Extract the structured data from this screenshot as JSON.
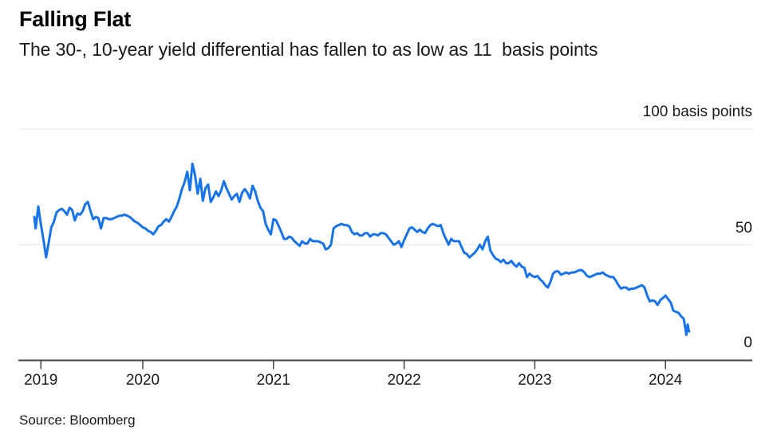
{
  "header": {
    "title": "Falling Flat",
    "subtitle": "The 30-, 10-year yield differential has fallen to as low as 11  basis points"
  },
  "footer": {
    "source": "Source: Bloomberg"
  },
  "colors": {
    "line": "#1673eb",
    "grid": "#e7e7e7",
    "axis": "#444444",
    "text": "#1a1a1a",
    "background": "#ffffff"
  },
  "chart_data": {
    "type": "line",
    "title": "Falling Flat",
    "subtitle": "The 30-, 10-year yield differential has fallen to as low as 11  basis points",
    "xlabel": "",
    "ylabel": "basis points",
    "ylim": [
      0,
      100
    ],
    "xlim_years": [
      2019.05,
      2024.66
    ],
    "grid": "horizontal-light",
    "legend": "none",
    "y_ticks": [
      {
        "value": 100,
        "label": "100 basis points"
      },
      {
        "value": 50,
        "label": "50"
      },
      {
        "value": 0,
        "label": "0"
      }
    ],
    "x_ticks": [
      {
        "label": "2019",
        "year": 2019.22
      },
      {
        "label": "2020",
        "year": 2020
      },
      {
        "label": "2021",
        "year": 2021
      },
      {
        "label": "2022",
        "year": 2022
      },
      {
        "label": "2023",
        "year": 2023
      },
      {
        "label": "2024",
        "year": 2024
      }
    ],
    "series": [
      {
        "name": "30-, 10-year yield differential",
        "unit": "basis points",
        "color": "#1673eb",
        "min_value": 11,
        "points": [
          [
            2019.17,
            62
          ],
          [
            2019.18,
            57
          ],
          [
            2019.2,
            66.5
          ],
          [
            2019.22,
            59
          ],
          [
            2019.24,
            52
          ],
          [
            2019.26,
            44.5
          ],
          [
            2019.28,
            51
          ],
          [
            2019.3,
            57.5
          ],
          [
            2019.32,
            60
          ],
          [
            2019.34,
            64
          ],
          [
            2019.36,
            65
          ],
          [
            2019.38,
            65.5
          ],
          [
            2019.4,
            64.5
          ],
          [
            2019.42,
            63
          ],
          [
            2019.44,
            66
          ],
          [
            2019.46,
            65
          ],
          [
            2019.48,
            60.5
          ],
          [
            2019.5,
            63.5
          ],
          [
            2019.52,
            63
          ],
          [
            2019.54,
            64.5
          ],
          [
            2019.56,
            67.5
          ],
          [
            2019.58,
            68.5
          ],
          [
            2019.6,
            64.5
          ],
          [
            2019.62,
            61
          ],
          [
            2019.64,
            62
          ],
          [
            2019.66,
            61.5
          ],
          [
            2019.68,
            57
          ],
          [
            2019.7,
            61.5
          ],
          [
            2019.72,
            61.5
          ],
          [
            2019.74,
            61
          ],
          [
            2019.76,
            61
          ],
          [
            2019.78,
            61.5
          ],
          [
            2019.8,
            62
          ],
          [
            2019.82,
            62.5
          ],
          [
            2019.84,
            62.5
          ],
          [
            2019.86,
            63
          ],
          [
            2019.88,
            62.5
          ],
          [
            2019.9,
            62
          ],
          [
            2019.92,
            61
          ],
          [
            2019.94,
            60
          ],
          [
            2019.96,
            59.5
          ],
          [
            2019.98,
            58.5
          ],
          [
            2020.0,
            57.5
          ],
          [
            2020.02,
            57
          ],
          [
            2020.04,
            56
          ],
          [
            2020.06,
            55.5
          ],
          [
            2020.08,
            54.5
          ],
          [
            2020.1,
            56
          ],
          [
            2020.12,
            58
          ],
          [
            2020.14,
            58.5
          ],
          [
            2020.16,
            60
          ],
          [
            2020.18,
            61
          ],
          [
            2020.2,
            60
          ],
          [
            2020.22,
            62
          ],
          [
            2020.24,
            64.5
          ],
          [
            2020.26,
            66.5
          ],
          [
            2020.28,
            70
          ],
          [
            2020.3,
            74
          ],
          [
            2020.32,
            77
          ],
          [
            2020.34,
            81.5
          ],
          [
            2020.35,
            78
          ],
          [
            2020.36,
            73.5
          ],
          [
            2020.38,
            85
          ],
          [
            2020.4,
            80
          ],
          [
            2020.42,
            72
          ],
          [
            2020.44,
            78.5
          ],
          [
            2020.46,
            69
          ],
          [
            2020.48,
            74.5
          ],
          [
            2020.5,
            76
          ],
          [
            2020.52,
            68.5
          ],
          [
            2020.54,
            70.5
          ],
          [
            2020.56,
            73
          ],
          [
            2020.58,
            71
          ],
          [
            2020.6,
            73.5
          ],
          [
            2020.62,
            77.5
          ],
          [
            2020.64,
            74.5
          ],
          [
            2020.66,
            72
          ],
          [
            2020.68,
            69.5
          ],
          [
            2020.7,
            71
          ],
          [
            2020.72,
            72
          ],
          [
            2020.74,
            68.5
          ],
          [
            2020.76,
            72.5
          ],
          [
            2020.78,
            74
          ],
          [
            2020.8,
            72.5
          ],
          [
            2020.82,
            70
          ],
          [
            2020.84,
            75.5
          ],
          [
            2020.86,
            73
          ],
          [
            2020.88,
            69
          ],
          [
            2020.9,
            66
          ],
          [
            2020.92,
            64.5
          ],
          [
            2020.94,
            59
          ],
          [
            2020.96,
            56.5
          ],
          [
            2020.98,
            54.5
          ],
          [
            2021.0,
            61
          ],
          [
            2021.02,
            60.5
          ],
          [
            2021.04,
            58
          ],
          [
            2021.06,
            55.5
          ],
          [
            2021.08,
            52.5
          ],
          [
            2021.1,
            52.5
          ],
          [
            2021.12,
            53.5
          ],
          [
            2021.14,
            53
          ],
          [
            2021.16,
            51.5
          ],
          [
            2021.18,
            50.5
          ],
          [
            2021.2,
            49.5
          ],
          [
            2021.22,
            51.5
          ],
          [
            2021.24,
            50.5
          ],
          [
            2021.26,
            50.5
          ],
          [
            2021.28,
            52.5
          ],
          [
            2021.3,
            51.5
          ],
          [
            2021.32,
            51.5
          ],
          [
            2021.34,
            51.5
          ],
          [
            2021.36,
            51
          ],
          [
            2021.38,
            50.5
          ],
          [
            2021.4,
            48
          ],
          [
            2021.42,
            48.5
          ],
          [
            2021.44,
            50
          ],
          [
            2021.46,
            57
          ],
          [
            2021.48,
            58
          ],
          [
            2021.5,
            58.5
          ],
          [
            2021.52,
            59
          ],
          [
            2021.54,
            58.5
          ],
          [
            2021.56,
            58.5
          ],
          [
            2021.58,
            58
          ],
          [
            2021.6,
            55.5
          ],
          [
            2021.62,
            54.5
          ],
          [
            2021.64,
            55
          ],
          [
            2021.66,
            54
          ],
          [
            2021.68,
            54
          ],
          [
            2021.7,
            55
          ],
          [
            2021.72,
            55
          ],
          [
            2021.74,
            53.5
          ],
          [
            2021.76,
            54.5
          ],
          [
            2021.78,
            54.5
          ],
          [
            2021.8,
            54
          ],
          [
            2021.82,
            55
          ],
          [
            2021.84,
            55
          ],
          [
            2021.86,
            54.5
          ],
          [
            2021.88,
            53
          ],
          [
            2021.9,
            51.5
          ],
          [
            2021.92,
            50
          ],
          [
            2021.94,
            50.5
          ],
          [
            2021.96,
            51.5
          ],
          [
            2021.98,
            49
          ],
          [
            2022.0,
            52
          ],
          [
            2022.02,
            54.5
          ],
          [
            2022.04,
            57
          ],
          [
            2022.06,
            57.5
          ],
          [
            2022.08,
            56.5
          ],
          [
            2022.1,
            55.5
          ],
          [
            2022.12,
            56.5
          ],
          [
            2022.14,
            55.5
          ],
          [
            2022.16,
            55
          ],
          [
            2022.18,
            57
          ],
          [
            2022.2,
            58.5
          ],
          [
            2022.22,
            59
          ],
          [
            2022.24,
            58.5
          ],
          [
            2022.26,
            58
          ],
          [
            2022.28,
            58.5
          ],
          [
            2022.3,
            55
          ],
          [
            2022.32,
            52.5
          ],
          [
            2022.34,
            50
          ],
          [
            2022.36,
            52.5
          ],
          [
            2022.38,
            51.5
          ],
          [
            2022.4,
            51.5
          ],
          [
            2022.42,
            51.5
          ],
          [
            2022.44,
            49
          ],
          [
            2022.46,
            46.5
          ],
          [
            2022.48,
            46
          ],
          [
            2022.5,
            44.5
          ],
          [
            2022.52,
            45.5
          ],
          [
            2022.54,
            46.5
          ],
          [
            2022.56,
            48
          ],
          [
            2022.58,
            50
          ],
          [
            2022.6,
            48
          ],
          [
            2022.62,
            51.5
          ],
          [
            2022.64,
            53.5
          ],
          [
            2022.66,
            47.5
          ],
          [
            2022.68,
            45.5
          ],
          [
            2022.7,
            44
          ],
          [
            2022.72,
            43.5
          ],
          [
            2022.74,
            42.5
          ],
          [
            2022.76,
            43.5
          ],
          [
            2022.78,
            42
          ],
          [
            2022.8,
            42
          ],
          [
            2022.82,
            43
          ],
          [
            2022.84,
            41.5
          ],
          [
            2022.86,
            40.5
          ],
          [
            2022.88,
            42
          ],
          [
            2022.9,
            40.5
          ],
          [
            2022.92,
            40
          ],
          [
            2022.94,
            36
          ],
          [
            2022.96,
            37.5
          ],
          [
            2022.98,
            36.5
          ],
          [
            2023.0,
            36
          ],
          [
            2023.02,
            36.5
          ],
          [
            2023.04,
            35
          ],
          [
            2023.06,
            34
          ],
          [
            2023.08,
            32.5
          ],
          [
            2023.1,
            31.5
          ],
          [
            2023.12,
            34
          ],
          [
            2023.14,
            37.5
          ],
          [
            2023.16,
            38.5
          ],
          [
            2023.18,
            38.5
          ],
          [
            2023.2,
            37
          ],
          [
            2023.22,
            37.5
          ],
          [
            2023.24,
            38
          ],
          [
            2023.26,
            37.5
          ],
          [
            2023.28,
            38
          ],
          [
            2023.3,
            38
          ],
          [
            2023.32,
            38.5
          ],
          [
            2023.34,
            39
          ],
          [
            2023.36,
            39
          ],
          [
            2023.38,
            38
          ],
          [
            2023.4,
            36.5
          ],
          [
            2023.42,
            36
          ],
          [
            2023.44,
            36.5
          ],
          [
            2023.46,
            37
          ],
          [
            2023.48,
            37.5
          ],
          [
            2023.5,
            37.5
          ],
          [
            2023.52,
            38
          ],
          [
            2023.54,
            37
          ],
          [
            2023.56,
            36.5
          ],
          [
            2023.58,
            36
          ],
          [
            2023.6,
            36
          ],
          [
            2023.62,
            34.5
          ],
          [
            2023.64,
            32.5
          ],
          [
            2023.66,
            31
          ],
          [
            2023.68,
            31.5
          ],
          [
            2023.7,
            31.5
          ],
          [
            2023.72,
            30.5
          ],
          [
            2023.74,
            31
          ],
          [
            2023.76,
            31
          ],
          [
            2023.78,
            31.5
          ],
          [
            2023.8,
            32
          ],
          [
            2023.82,
            32.5
          ],
          [
            2023.84,
            31.5
          ],
          [
            2023.86,
            28
          ],
          [
            2023.88,
            25.5
          ],
          [
            2023.9,
            26
          ],
          [
            2023.92,
            25.5
          ],
          [
            2023.94,
            24
          ],
          [
            2023.96,
            26
          ],
          [
            2023.98,
            27
          ],
          [
            2024.0,
            28
          ],
          [
            2024.02,
            26.5
          ],
          [
            2024.04,
            25
          ],
          [
            2024.06,
            21.5
          ],
          [
            2024.08,
            21
          ],
          [
            2024.1,
            20.5
          ],
          [
            2024.12,
            19
          ],
          [
            2024.14,
            18
          ],
          [
            2024.16,
            11
          ],
          [
            2024.17,
            15.5
          ],
          [
            2024.18,
            12.5
          ]
        ]
      }
    ]
  }
}
